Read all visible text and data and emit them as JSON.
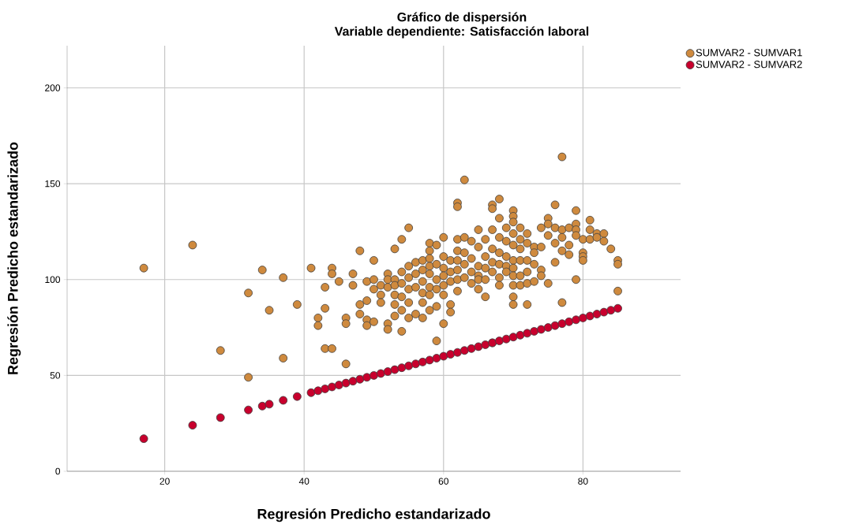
{
  "chart_data": {
    "type": "scatter",
    "title": "Gráfico de dispersión",
    "subtitle": "Variable dependiente: Satisfacción laboral",
    "xlabel": "Regresión Predicho estandarizado",
    "ylabel": "Regresión Predicho estandarizado",
    "xlim": [
      6,
      94
    ],
    "ylim": [
      0,
      222
    ],
    "xticks": [
      20,
      40,
      60,
      80
    ],
    "yticks": [
      0,
      50,
      100,
      150,
      200
    ],
    "grid": true,
    "legend": "top right",
    "marker": "circle",
    "series": [
      {
        "name": "SUMVAR2 - SUMVAR1",
        "color": "#cf8a3e",
        "x": [
          17,
          24,
          28,
          32,
          32,
          34,
          35,
          37,
          37,
          39,
          41,
          42,
          42,
          43,
          43,
          43,
          44,
          44,
          44,
          45,
          46,
          46,
          46,
          47,
          47,
          48,
          48,
          48,
          49,
          49,
          49,
          49,
          50,
          50,
          50,
          50,
          51,
          51,
          51,
          52,
          52,
          52,
          52,
          52,
          53,
          53,
          53,
          53,
          53,
          53,
          54,
          54,
          54,
          54,
          54,
          54,
          55,
          55,
          55,
          55,
          55,
          55,
          56,
          56,
          56,
          56,
          57,
          57,
          57,
          57,
          57,
          57,
          58,
          58,
          58,
          58,
          58,
          58,
          58,
          58,
          59,
          59,
          59,
          59,
          59,
          59,
          60,
          60,
          60,
          60,
          60,
          60,
          60,
          61,
          61,
          61,
          61,
          61,
          62,
          62,
          62,
          62,
          62,
          62,
          62,
          62,
          63,
          63,
          63,
          63,
          63,
          64,
          64,
          64,
          64,
          65,
          65,
          65,
          65,
          65,
          65,
          66,
          66,
          66,
          66,
          66,
          67,
          67,
          67,
          67,
          67,
          67,
          67,
          68,
          68,
          68,
          68,
          68,
          68,
          68,
          69,
          69,
          69,
          69,
          69,
          70,
          70,
          70,
          70,
          70,
          70,
          70,
          70,
          70,
          70,
          70,
          71,
          71,
          71,
          71,
          71,
          71,
          72,
          72,
          72,
          72,
          72,
          72,
          73,
          73,
          73,
          73,
          74,
          74,
          74,
          74,
          75,
          75,
          75,
          75,
          76,
          76,
          76,
          76,
          77,
          77,
          77,
          77,
          77,
          78,
          78,
          78,
          79,
          79,
          79,
          79,
          79,
          80,
          80,
          80,
          80,
          81,
          81,
          81,
          82,
          82,
          83,
          83,
          84,
          85,
          85,
          85
        ],
        "values": [
          106,
          118,
          63,
          93,
          49,
          105,
          84,
          101,
          59,
          87,
          106,
          80,
          76,
          96,
          85,
          64,
          64,
          106,
          103,
          99,
          80,
          77,
          56,
          103,
          97,
          115,
          87,
          82,
          99,
          89,
          79,
          76,
          110,
          100,
          95,
          78,
          97,
          92,
          88,
          103,
          100,
          96,
          77,
          74,
          100,
          97,
          92,
          87,
          81,
          116,
          121,
          104,
          98,
          91,
          84,
          73,
          127,
          107,
          101,
          95,
          88,
          80,
          109,
          103,
          96,
          82,
          110,
          105,
          99,
          93,
          88,
          80,
          119,
          115,
          111,
          107,
          103,
          96,
          92,
          84,
          118,
          108,
          100,
          95,
          86,
          68,
          122,
          112,
          106,
          102,
          97,
          92,
          77,
          110,
          104,
          99,
          87,
          83,
          140,
          138,
          121,
          115,
          110,
          105,
          100,
          94,
          152,
          122,
          114,
          108,
          101,
          120,
          111,
          104,
          98,
          126,
          117,
          107,
          102,
          100,
          95,
          121,
          112,
          106,
          100,
          91,
          139,
          137,
          126,
          116,
          109,
          104,
          67,
          142,
          132,
          122,
          114,
          108,
          101,
          97,
          127,
          120,
          112,
          107,
          104,
          136,
          133,
          130,
          124,
          118,
          110,
          106,
          102,
          97,
          91,
          87,
          127,
          121,
          116,
          110,
          102,
          97,
          124,
          119,
          110,
          104,
          98,
          87,
          117,
          114,
          108,
          99,
          127,
          117,
          105,
          102,
          132,
          129,
          123,
          98,
          139,
          127,
          119,
          109,
          164,
          126,
          122,
          115,
          88,
          127,
          118,
          113,
          136,
          129,
          126,
          123,
          100,
          121,
          114,
          112,
          110,
          131,
          126,
          121,
          124,
          122,
          124,
          120,
          116,
          110,
          108,
          94
        ]
      },
      {
        "name": "SUMVAR2 - SUMVAR2",
        "color": "#c8002d",
        "x": [
          17,
          24,
          28,
          32,
          34,
          35,
          37,
          39,
          41,
          42,
          43,
          44,
          45,
          46,
          47,
          48,
          49,
          50,
          51,
          52,
          53,
          54,
          55,
          56,
          57,
          58,
          59,
          60,
          61,
          62,
          63,
          64,
          65,
          66,
          67,
          68,
          69,
          70,
          71,
          72,
          73,
          74,
          75,
          76,
          77,
          78,
          79,
          80,
          81,
          82,
          83,
          84,
          85
        ],
        "values": [
          17,
          24,
          28,
          32,
          34,
          35,
          37,
          39,
          41,
          42,
          43,
          44,
          45,
          46,
          47,
          48,
          49,
          50,
          51,
          52,
          53,
          54,
          55,
          56,
          57,
          58,
          59,
          60,
          61,
          62,
          63,
          64,
          65,
          66,
          67,
          68,
          69,
          70,
          71,
          72,
          73,
          74,
          75,
          76,
          77,
          78,
          79,
          80,
          81,
          82,
          83,
          84,
          85
        ]
      }
    ]
  }
}
